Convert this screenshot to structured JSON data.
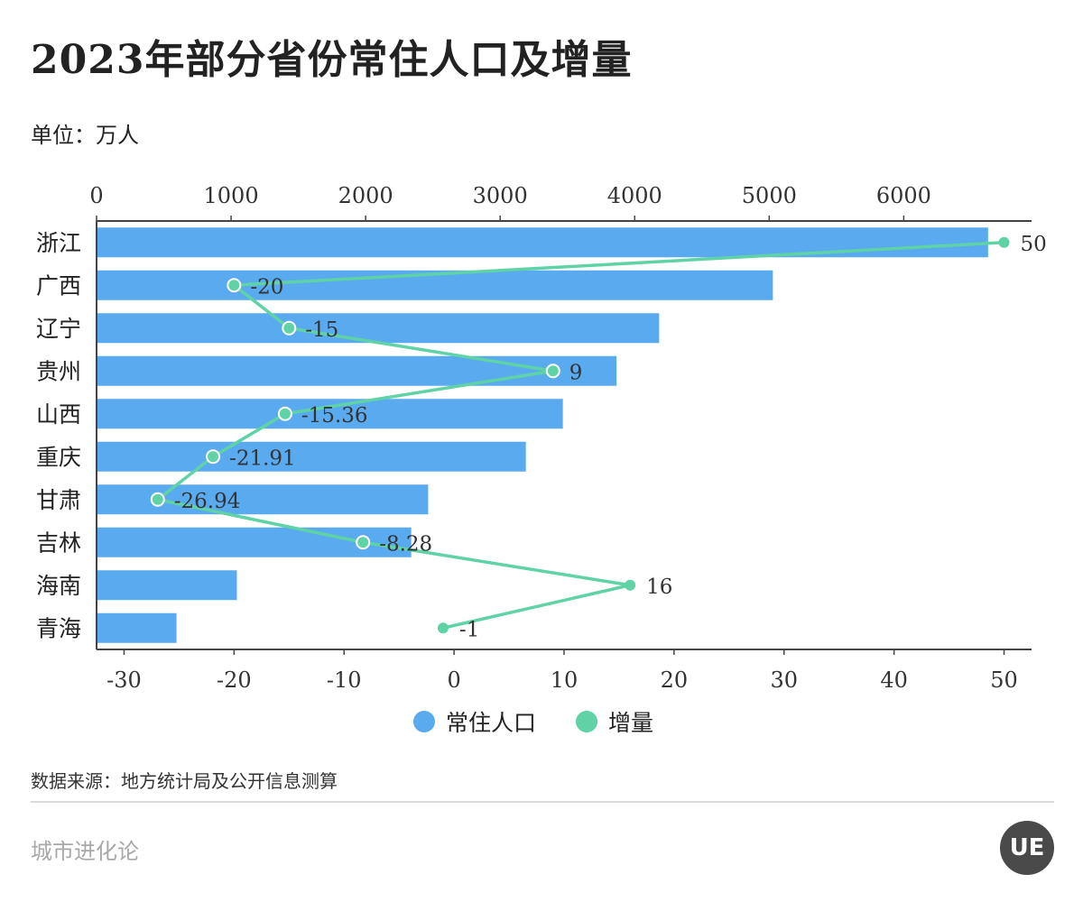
{
  "title": "2023年部分省份常住人口及增量",
  "unit": "单位：万人",
  "legend": {
    "bar_label": "常住人口",
    "line_label": "增量"
  },
  "source": "数据来源：地方统计局及公开信息测算",
  "brand": "城市进化论",
  "logo_text": "UE",
  "colors": {
    "bar": "#5aaaf0",
    "line": "#5fd3a5"
  },
  "chart_data": {
    "type": "bar",
    "categories": [
      "浙江",
      "广西",
      "辽宁",
      "贵州",
      "山西",
      "重庆",
      "甘肃",
      "吉林",
      "海南",
      "青海"
    ],
    "series": [
      {
        "name": "常住人口",
        "type": "bar",
        "values": [
          6627,
          5027,
          4182,
          3865,
          3466,
          3191,
          2465,
          2339,
          1043,
          594
        ]
      },
      {
        "name": "增量",
        "type": "line",
        "values": [
          50,
          -20,
          -15,
          9,
          -15.36,
          -21.91,
          -26.94,
          -8.28,
          16,
          -1
        ],
        "labels": [
          "50",
          "-20",
          "-15",
          "9",
          "-15.36",
          "-21.91",
          "-26.94",
          "-8.28",
          "16",
          "-1"
        ]
      }
    ],
    "top_axis": {
      "ticks": [
        0,
        1000,
        2000,
        3000,
        4000,
        5000,
        6000
      ],
      "range": [
        0,
        6950
      ]
    },
    "bottom_axis": {
      "ticks": [
        -30,
        -20,
        -10,
        0,
        10,
        20,
        30,
        40,
        50
      ],
      "range": [
        -32.5,
        52.5
      ]
    }
  }
}
